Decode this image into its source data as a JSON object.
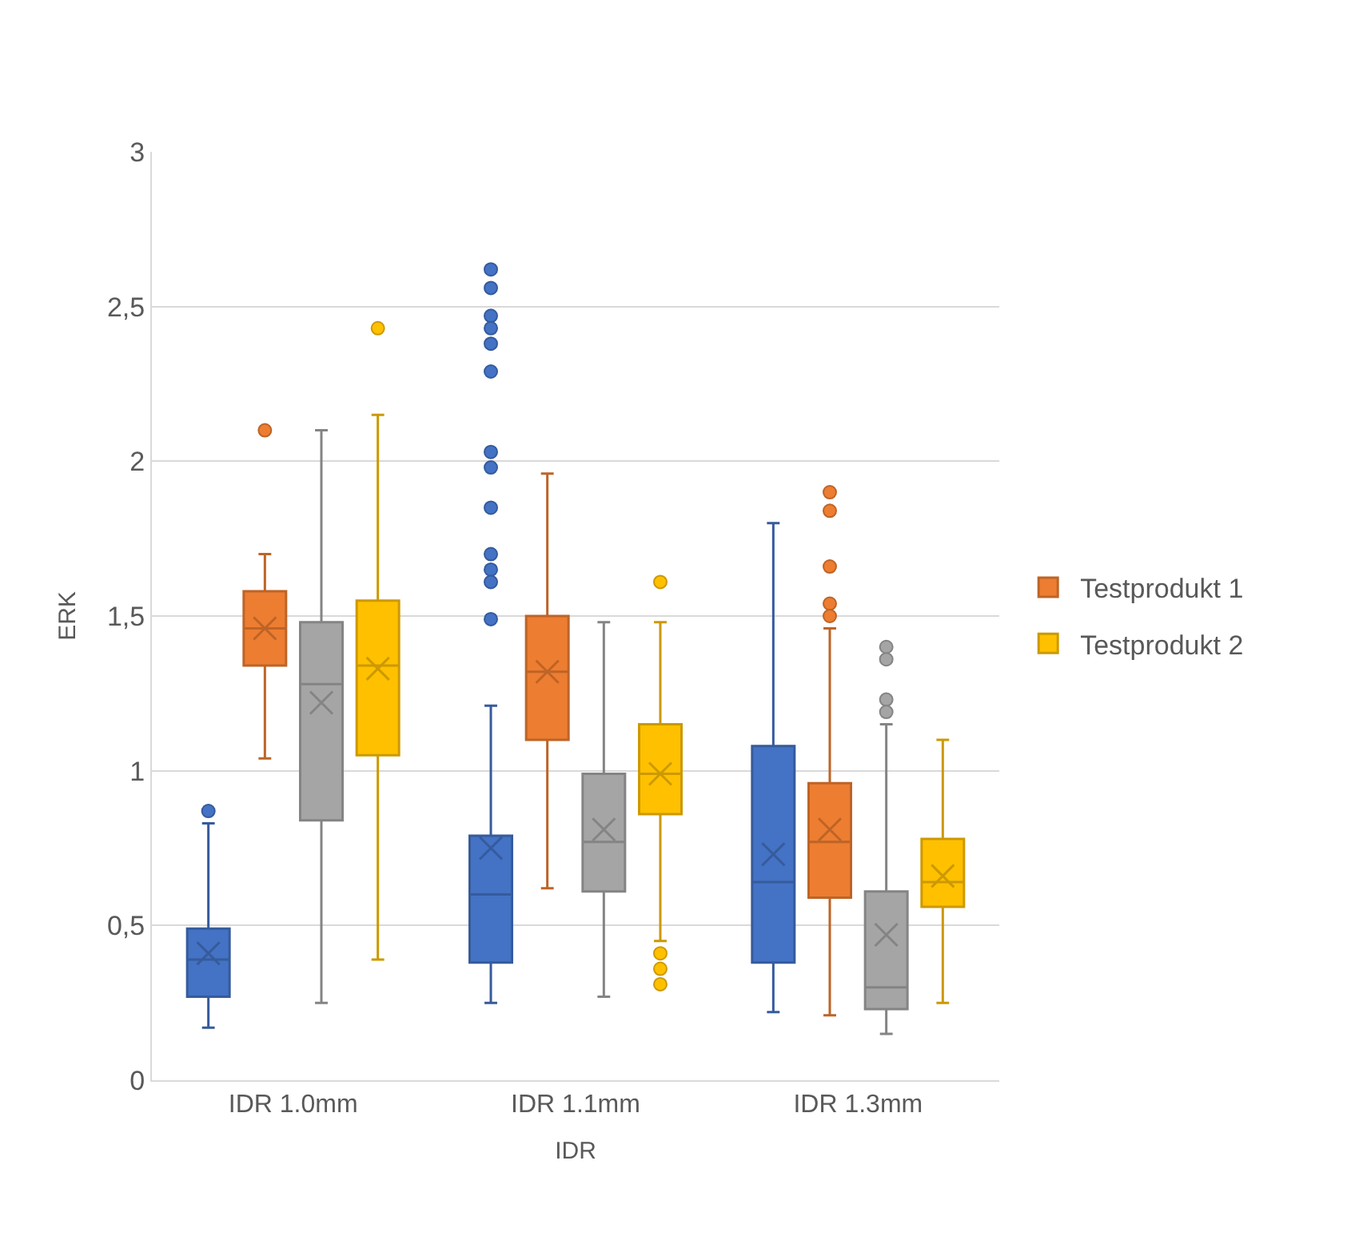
{
  "chart_data": {
    "type": "box",
    "xlabel": "IDR",
    "ylabel": "ERK",
    "categories": [
      "IDR 1.0mm",
      "IDR 1.1mm",
      "IDR 1.3mm"
    ],
    "ylim": [
      0,
      3
    ],
    "yticks": [
      0,
      {
        "value": 0.5,
        "label": "0,5"
      },
      1,
      {
        "value": 1.5,
        "label": "1,5"
      },
      2,
      {
        "value": 2.5,
        "label": "2,5"
      },
      3
    ],
    "grid": "y",
    "legend": "right",
    "marker": "circle",
    "series": [
      {
        "color": "#4472c4",
        "boxes": [
          {
            "low": 0.17,
            "q1": 0.27,
            "median": 0.39,
            "q3": 0.49,
            "high": 0.83,
            "mean": 0.41,
            "outliers": [
              0.87
            ]
          },
          {
            "low": 0.25,
            "q1": 0.38,
            "median": 0.6,
            "q3": 0.79,
            "high": 1.21,
            "mean": 0.75,
            "outliers": [
              2.62,
              2.56,
              2.47,
              2.43,
              2.38,
              2.29,
              2.03,
              1.98,
              1.85,
              1.7,
              1.65,
              1.61,
              1.49
            ]
          },
          {
            "low": 0.22,
            "q1": 0.38,
            "median": 0.64,
            "q3": 1.08,
            "high": 1.8,
            "mean": 0.73
          }
        ]
      },
      {
        "name": "Testprodukt 1",
        "color": "#ed7d31",
        "boxes": [
          {
            "low": 1.04,
            "q1": 1.34,
            "median": 1.46,
            "q3": 1.58,
            "high": 1.7,
            "mean": 1.46,
            "outliers": [
              2.1
            ]
          },
          {
            "low": 0.62,
            "q1": 1.1,
            "median": 1.32,
            "q3": 1.5,
            "high": 1.96,
            "mean": 1.32
          },
          {
            "low": 0.21,
            "q1": 0.59,
            "median": 0.77,
            "q3": 0.96,
            "high": 1.46,
            "mean": 0.81,
            "outliers": [
              1.9,
              1.84,
              1.66,
              1.54,
              1.5
            ]
          }
        ]
      },
      {
        "color": "#a5a5a5",
        "boxes": [
          {
            "low": 0.25,
            "q1": 0.84,
            "median": 1.28,
            "q3": 1.48,
            "high": 2.1,
            "mean": 1.22
          },
          {
            "low": 0.27,
            "q1": 0.61,
            "median": 0.77,
            "q3": 0.99,
            "high": 1.48,
            "mean": 0.81
          },
          {
            "low": 0.15,
            "q1": 0.23,
            "median": 0.3,
            "q3": 0.61,
            "high": 1.15,
            "mean": 0.47,
            "outliers": [
              1.4,
              1.36,
              1.23,
              1.19
            ]
          }
        ]
      },
      {
        "name": "Testprodukt 2",
        "color": "#ffc000",
        "boxes": [
          {
            "low": 0.39,
            "q1": 1.05,
            "median": 1.34,
            "q3": 1.55,
            "high": 2.15,
            "mean": 1.33,
            "outliers": [
              2.43
            ]
          },
          {
            "low": 0.45,
            "q1": 0.86,
            "median": 0.99,
            "q3": 1.15,
            "high": 1.48,
            "mean": 0.99,
            "outliers": [
              1.61,
              0.41,
              0.36,
              0.31
            ]
          },
          {
            "low": 0.25,
            "q1": 0.56,
            "median": 0.64,
            "q3": 0.78,
            "high": 1.1,
            "mean": 0.66
          }
        ]
      }
    ]
  }
}
